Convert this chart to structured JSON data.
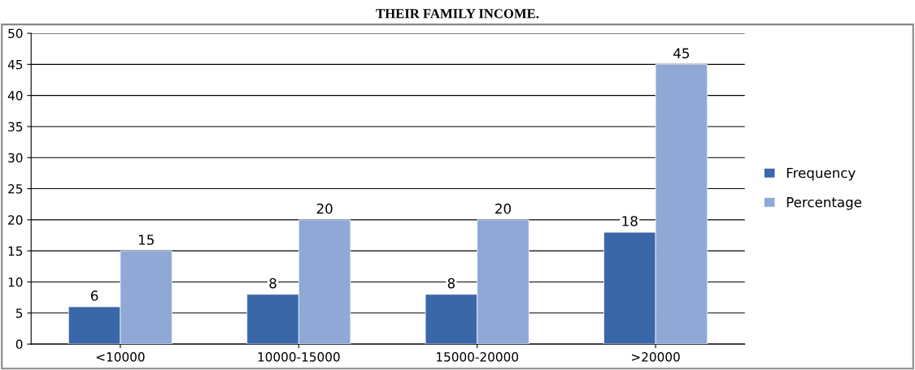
{
  "chart_data": {
    "type": "bar",
    "title": "THEIR FAMILY INCOME.",
    "categories": [
      "<10000",
      "10000-15000",
      "15000-20000",
      ">20000"
    ],
    "series": [
      {
        "name": "Frequency",
        "color": "#3a67a8",
        "values": [
          6,
          8,
          8,
          18
        ]
      },
      {
        "name": "Percentage",
        "color": "#8fa8d6",
        "values": [
          15,
          20,
          20,
          45
        ]
      }
    ],
    "ylim": [
      0,
      50
    ],
    "yticks": [
      0,
      5,
      10,
      15,
      20,
      25,
      30,
      35,
      40,
      45,
      50
    ],
    "grid": "y",
    "legend": "right",
    "data_labels": true
  }
}
